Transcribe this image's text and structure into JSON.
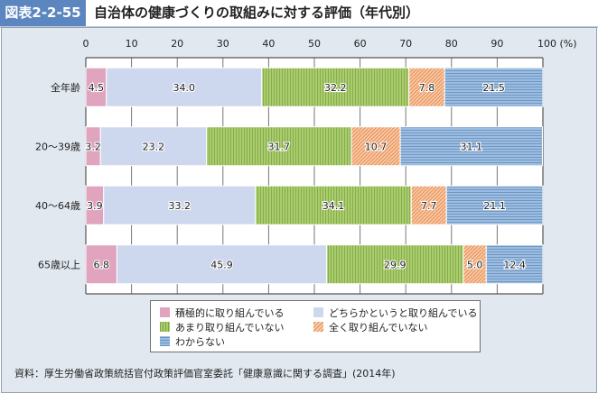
{
  "header": {
    "figure_label": "図表2-2-55",
    "title": "自治体の健康づくりの取組みに対する評価（年代別）"
  },
  "colors": {
    "label_bg": "#5b86bf",
    "panel_bg": "#e1e8f0",
    "active": "#e0a4bf",
    "somewhat": "#cdd8ee",
    "not_much": "#a6c86a",
    "not_at_all": "#ec9a63",
    "unknown": "#8fb2d9"
  },
  "chart_data": {
    "type": "bar",
    "orientation": "horizontal",
    "stacked": true,
    "title": "自治体の健康づくりの取組みに対する評価（年代別）",
    "xlabel": "(%)",
    "ylabel": "",
    "xlim": [
      0,
      100
    ],
    "x_ticks": [
      "0",
      "10",
      "20",
      "30",
      "40",
      "50",
      "60",
      "70",
      "80",
      "90",
      "100"
    ],
    "x_unit": "(%)",
    "grid": true,
    "legend_position": "bottom",
    "categories": [
      "全年齢",
      "20～39歳",
      "40～64歳",
      "65歳以上"
    ],
    "series": [
      {
        "name": "積極的に取り組んでいる",
        "key": "active",
        "values": [
          4.5,
          3.2,
          3.9,
          6.8
        ],
        "labels": [
          "4.5",
          "3.2",
          "3.9",
          "6.8"
        ]
      },
      {
        "name": "どちらかというと取り組んでいる",
        "key": "somewhat",
        "values": [
          34.0,
          23.2,
          33.2,
          45.9
        ],
        "labels": [
          "34.0",
          "23.2",
          "33.2",
          "45.9"
        ]
      },
      {
        "name": "あまり取り組んでいない",
        "key": "not_much",
        "values": [
          32.2,
          31.7,
          34.1,
          29.9
        ],
        "labels": [
          "32.2",
          "31.7",
          "34.1",
          "29.9"
        ]
      },
      {
        "name": "全く取り組んでいない",
        "key": "not_at_all",
        "values": [
          7.8,
          10.7,
          7.7,
          5.0
        ],
        "labels": [
          "7.8",
          "10.7",
          "7.7",
          "5.0"
        ]
      },
      {
        "name": "わからない",
        "key": "unknown",
        "values": [
          21.5,
          31.1,
          21.1,
          12.4
        ],
        "labels": [
          "21.5",
          "31.1",
          "21.1",
          "12.4"
        ]
      }
    ]
  },
  "legend": {
    "items": [
      {
        "label": "積極的に取り組んでいる",
        "key": "active"
      },
      {
        "label": "どちらかというと取り組んでいる",
        "key": "somewhat"
      },
      {
        "label": "あまり取り組んでいない",
        "key": "not_much"
      },
      {
        "label": "全く取り組んでいない",
        "key": "not_at_all"
      },
      {
        "label": "わからない",
        "key": "unknown"
      }
    ]
  },
  "source": "資料：厚生労働省政策統括官付政策評価官室委託「健康意識に関する調査」(2014年)"
}
